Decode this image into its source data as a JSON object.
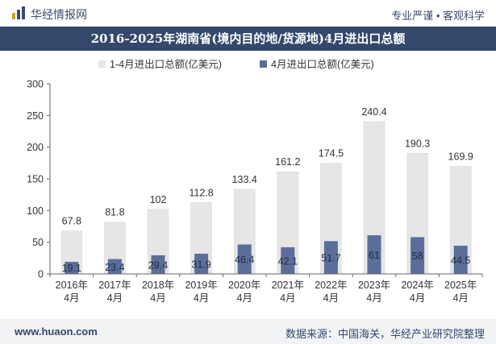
{
  "header": {
    "brand": "华经情报网",
    "slogan": "专业严谨 • 客观科学",
    "logo_icon": "bar-chart-logo-icon"
  },
  "footer": {
    "website": "www.huaon.com",
    "source": "数据来源：中国海关，华经产业研究院整理"
  },
  "colors": {
    "title_bg": "#33486b",
    "series_total": "#e6e6e6",
    "series_april": "#5b6e9a",
    "footer_bg": "#f2f3f5"
  },
  "chart_data": {
    "type": "bar",
    "title": "2016-2025年湖南省(境内目的地/货源地)4月进出口总额",
    "categories": [
      "2016年\n4月",
      "2017年\n4月",
      "2018年\n4月",
      "2019年\n4月",
      "2020年\n4月",
      "2021年\n4月",
      "2022年\n4月",
      "2023年\n4月",
      "2024年\n4月",
      "2025年\n4月"
    ],
    "series": [
      {
        "name": "1-4月进出口总额(亿美元)",
        "values": [
          67.8,
          81.8,
          102,
          112.8,
          133.4,
          161.2,
          174.5,
          240.4,
          190.3,
          169.9
        ]
      },
      {
        "name": "4月进出口总额(亿美元)",
        "values": [
          19.1,
          23.4,
          29.4,
          31.9,
          46.4,
          42.1,
          51.7,
          61,
          58,
          44.5
        ]
      }
    ],
    "value_labels": {
      "total": [
        "67.8",
        "81.8",
        "102",
        "112.8",
        "133.4",
        "161.2",
        "174.5",
        "240.4",
        "190.3",
        "169.9"
      ],
      "april": [
        "19.1",
        "23.4",
        "29.4",
        "31.9",
        "46.4",
        "42.1",
        "51.7",
        "61",
        "58",
        "44.5"
      ]
    },
    "yticks": [
      "0",
      "50",
      "100",
      "150",
      "200",
      "250",
      "300"
    ],
    "ylim": [
      0,
      300
    ],
    "legend_position": "top-center",
    "grid": false
  }
}
